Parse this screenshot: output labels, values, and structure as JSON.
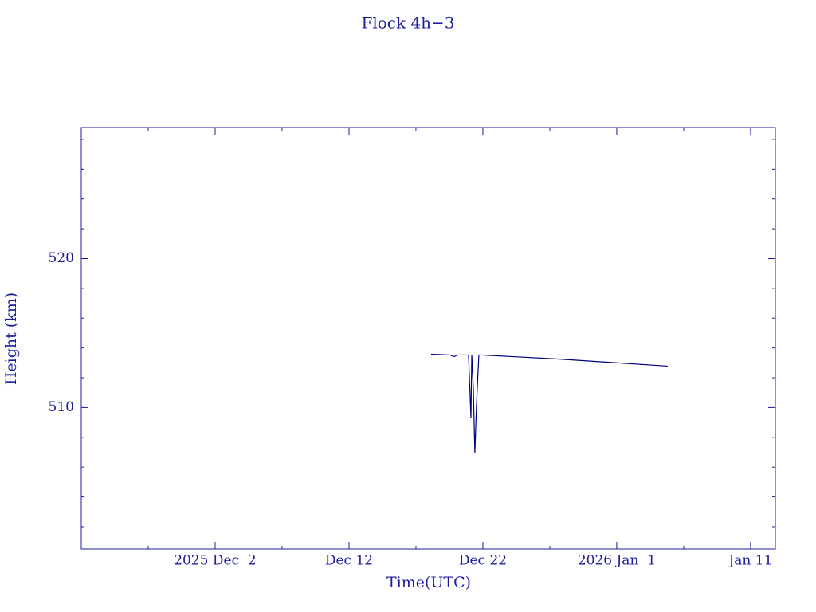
{
  "chart_data": {
    "type": "line",
    "title": "Flock 4h−3",
    "xlabel": "Time(UTC)",
    "ylabel": "Height (km)",
    "color": "#00007f",
    "x": [
      17.13,
      18.56,
      18.86,
      19.1,
      19.93,
      20.11,
      20.17,
      20.29,
      20.4,
      20.52,
      20.7,
      20.88,
      26.6,
      30.17,
      34.81
    ],
    "values": [
      513.58,
      513.53,
      513.42,
      513.53,
      513.53,
      509.3,
      513.53,
      511.18,
      506.95,
      510.11,
      513.53,
      513.53,
      513.26,
      513.05,
      512.78
    ],
    "xlim": [
      -9,
      42.85
    ],
    "xticks": [
      {
        "value": 1,
        "label": "2025 Dec  2"
      },
      {
        "value": 11,
        "label": "Dec 12"
      },
      {
        "value": 21,
        "label": "Dec 22"
      },
      {
        "value": 31,
        "label": "2026 Jan  1"
      },
      {
        "value": 41,
        "label": "Jan 11"
      }
    ],
    "xminorticks": [
      -4,
      6,
      16,
      26,
      36
    ],
    "ylim": [
      500.5,
      528.8
    ],
    "yticks": [
      510,
      520
    ],
    "yminorticks": [
      502,
      504,
      506,
      508,
      512,
      514,
      516,
      518,
      522,
      524,
      526,
      528
    ]
  }
}
